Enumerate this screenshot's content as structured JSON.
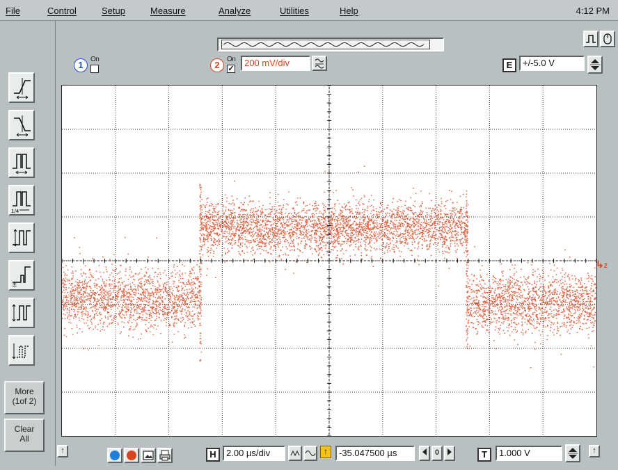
{
  "menu": {
    "items": [
      "File",
      "Control",
      "Setup",
      "Measure",
      "Analyze",
      "Utilities",
      "Help"
    ],
    "clock": "4:12 PM"
  },
  "channels": {
    "ch1": {
      "number": "1",
      "on_label": "On",
      "checked": false
    },
    "ch2": {
      "number": "2",
      "on_label": "On",
      "checked": true,
      "scale": "200 mV/div"
    }
  },
  "external": {
    "letter": "E",
    "range": "+/-5.0 V"
  },
  "left_tools": [
    "edge-rising-trigger-icon",
    "edge-falling-trigger-icon",
    "pulse-width-trigger-icon",
    "pulse-width-fraction-trigger-icon",
    "glitch-trigger-icon",
    "runt-trigger-icon",
    "pattern-trigger-icon",
    "window-trigger-icon"
  ],
  "side_buttons": {
    "more_line1": "More",
    "more_line2": "(1of 2)",
    "clear_line1": "Clear",
    "clear_line2": "All"
  },
  "timebase": {
    "h_letter": "H",
    "scale": "2.00 µs/div",
    "delay": "-35.047500 µs",
    "delay_btn_0": "0"
  },
  "trigger": {
    "letter": "T",
    "level": "1.000 V",
    "marker": "2"
  },
  "colors": {
    "trace": "#d9451f",
    "ch1": "#1f4fd6",
    "ch2": "#d9451f",
    "grid": "#333333"
  }
}
